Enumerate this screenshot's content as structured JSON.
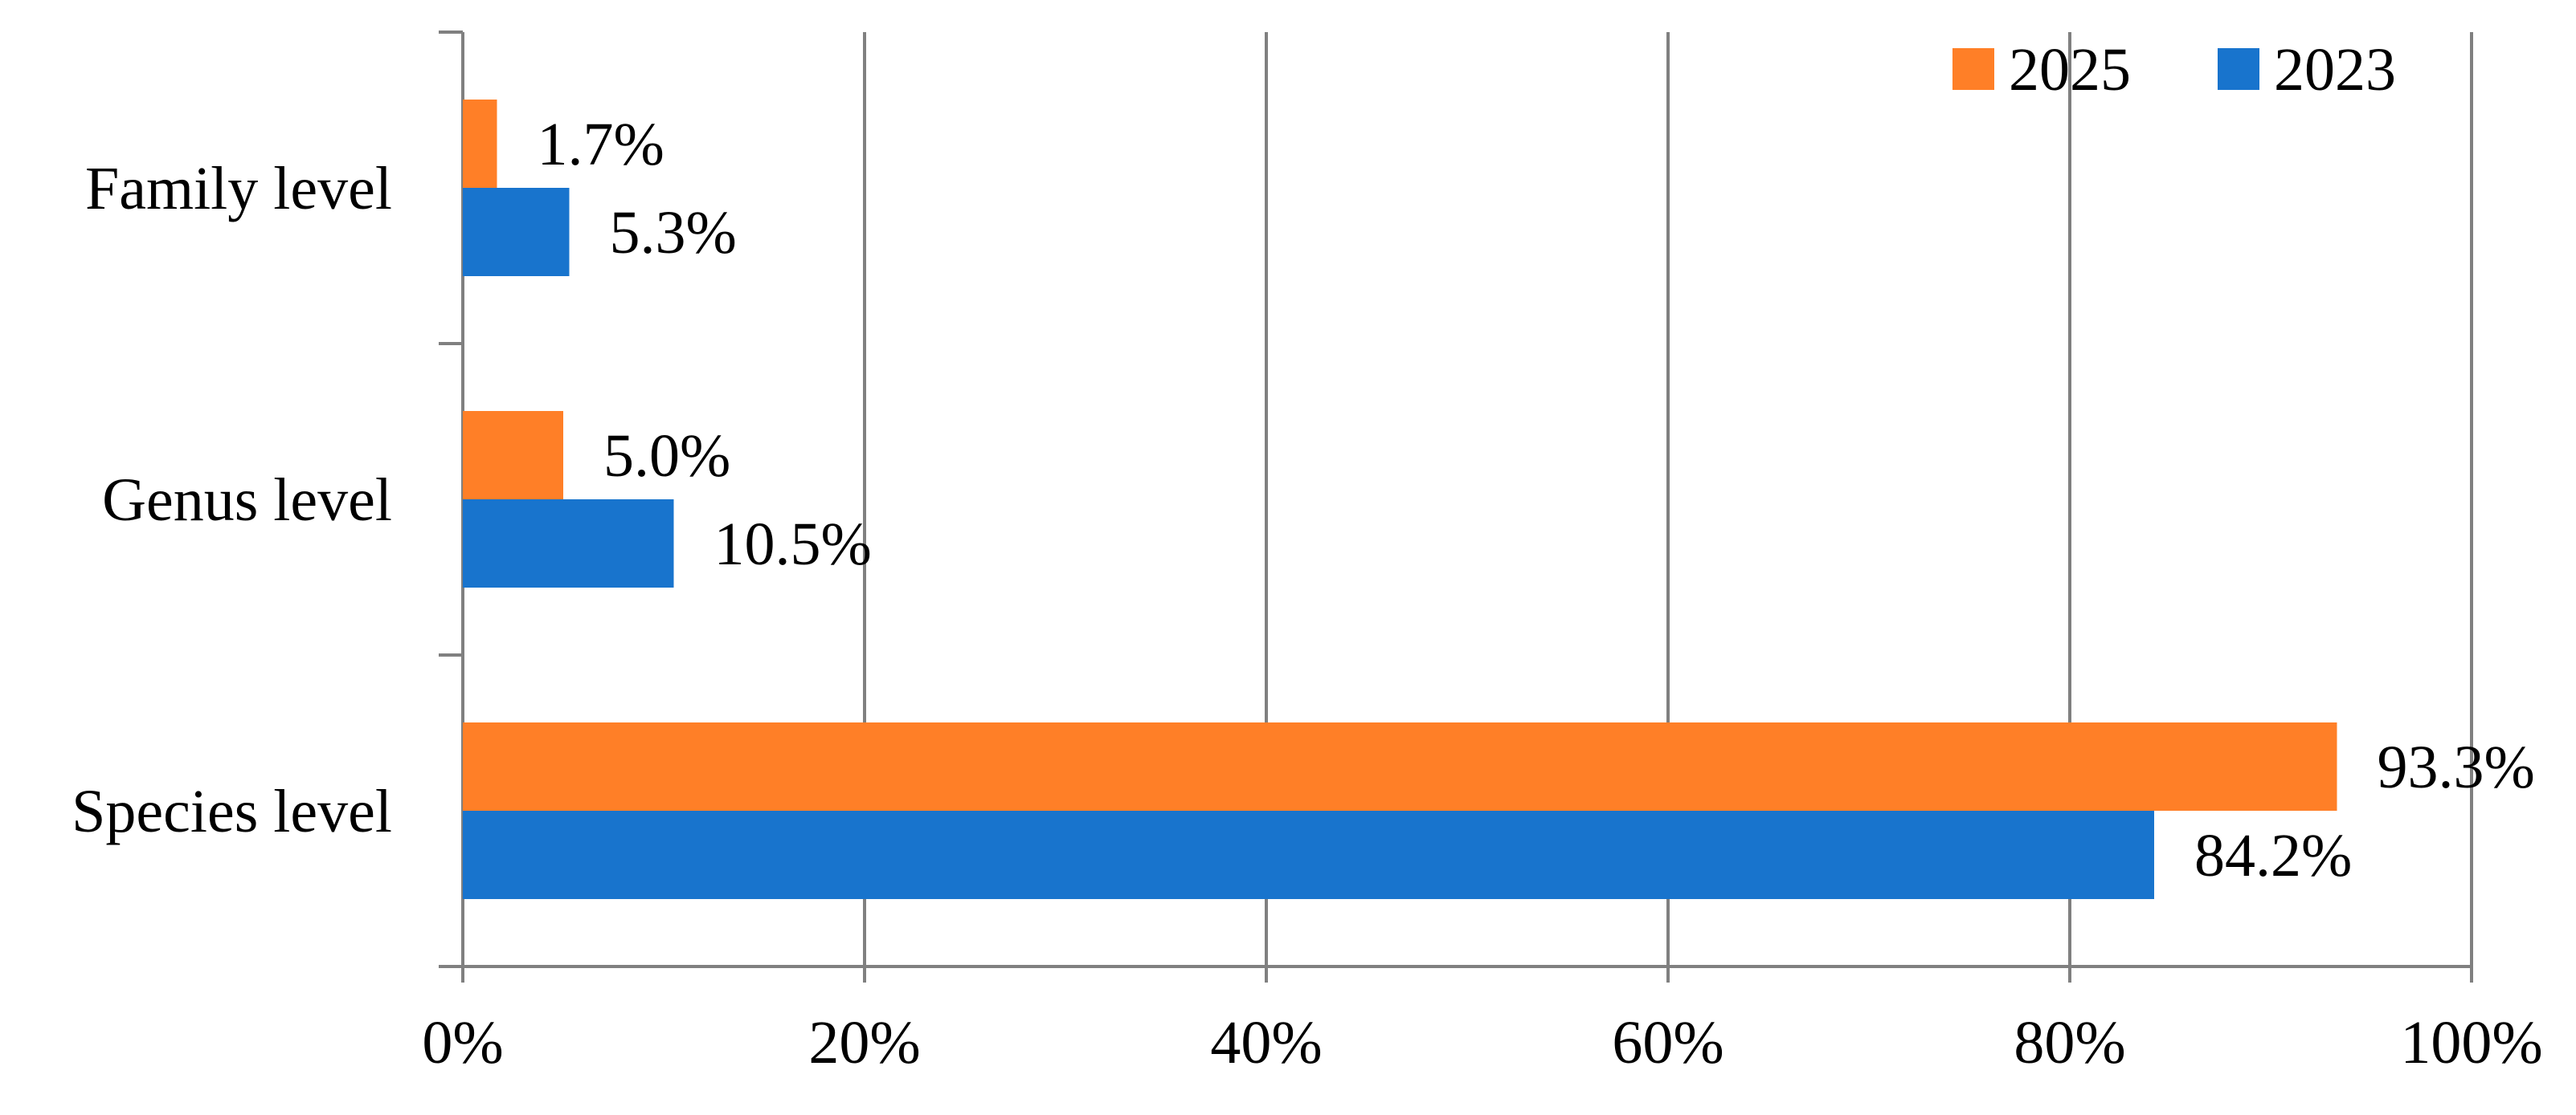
{
  "chart_data": {
    "type": "bar",
    "orientation": "horizontal",
    "categories": [
      "Species level",
      "Genus level",
      "Family level"
    ],
    "series": [
      {
        "name": "2025",
        "color": "#FF7F27",
        "values": [
          93.3,
          5.0,
          1.7
        ],
        "labels": [
          "93.3%",
          "5.0%",
          "1.7%"
        ]
      },
      {
        "name": "2023",
        "color": "#1874CD",
        "values": [
          84.2,
          10.5,
          5.3
        ],
        "labels": [
          "84.2%",
          "10.5%",
          "5.3%"
        ]
      }
    ],
    "xlim": [
      0,
      100
    ],
    "xticks": [
      0,
      20,
      40,
      60,
      80,
      100
    ],
    "xtick_labels": [
      "0%",
      "20%",
      "40%",
      "60%",
      "80%",
      "100%"
    ],
    "grid": "vertical",
    "legend_position": "top-right",
    "legend_order": [
      "2025",
      "2023"
    ],
    "title": "",
    "xlabel": "",
    "ylabel": "",
    "colors": {
      "grid": "#808080",
      "axis": "#808080",
      "text": "#000000"
    }
  }
}
